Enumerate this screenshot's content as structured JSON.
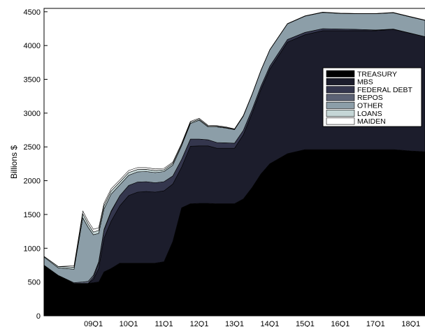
{
  "chart_data": {
    "type": "area",
    "stacked": true,
    "ylabel": "Billions $",
    "xlabel": "",
    "ylim": [
      0,
      4550
    ],
    "xlim": [
      2007.6,
      2018.4
    ],
    "yticks": [
      0,
      500,
      1000,
      1500,
      2000,
      2500,
      3000,
      3500,
      4000,
      4500
    ],
    "xticks": [
      {
        "label": "09Q1",
        "value": 2009.0
      },
      {
        "label": "10Q1",
        "value": 2010.0
      },
      {
        "label": "11Q1",
        "value": 2011.0
      },
      {
        "label": "12Q1",
        "value": 2012.0
      },
      {
        "label": "13Q1",
        "value": 2013.0
      },
      {
        "label": "14Q1",
        "value": 2014.0
      },
      {
        "label": "15Q1",
        "value": 2015.0
      },
      {
        "label": "16Q1",
        "value": 2016.0
      },
      {
        "label": "17Q1",
        "value": 2017.0
      },
      {
        "label": "18Q1",
        "value": 2018.0
      }
    ],
    "legend_position": "right",
    "x": [
      2007.6,
      2008.0,
      2008.45,
      2008.7,
      2008.85,
      2009.0,
      2009.15,
      2009.3,
      2009.5,
      2009.75,
      2010.0,
      2010.25,
      2010.5,
      2010.75,
      2011.0,
      2011.25,
      2011.5,
      2011.75,
      2012.0,
      2012.25,
      2012.5,
      2012.75,
      2013.0,
      2013.25,
      2013.5,
      2013.75,
      2014.0,
      2014.5,
      2015.0,
      2015.5,
      2016.0,
      2016.5,
      2017.0,
      2017.5,
      2018.0,
      2018.4
    ],
    "series": [
      {
        "name": "TREASURY",
        "color": "#000000",
        "values": [
          750,
          600,
          480,
          480,
          480,
          490,
          500,
          650,
          700,
          780,
          780,
          780,
          780,
          780,
          800,
          1100,
          1600,
          1660,
          1665,
          1665,
          1660,
          1660,
          1660,
          1730,
          1900,
          2100,
          2250,
          2400,
          2460,
          2460,
          2460,
          2460,
          2460,
          2460,
          2440,
          2430
        ]
      },
      {
        "name": "MBS",
        "color": "#1c1d2c",
        "values": [
          0,
          0,
          0,
          0,
          0,
          50,
          200,
          500,
          700,
          850,
          1000,
          1050,
          1060,
          1050,
          1050,
          850,
          600,
          850,
          850,
          850,
          820,
          820,
          820,
          950,
          1100,
          1250,
          1400,
          1650,
          1700,
          1760,
          1760,
          1760,
          1760,
          1780,
          1740,
          1700
        ]
      },
      {
        "name": "FEDERAL DEBT",
        "color": "#34364d",
        "values": [
          0,
          0,
          0,
          0,
          0,
          30,
          80,
          120,
          140,
          150,
          150,
          150,
          145,
          140,
          135,
          120,
          115,
          105,
          100,
          90,
          85,
          80,
          75,
          65,
          55,
          50,
          45,
          40,
          35,
          30,
          25,
          20,
          10,
          5,
          2,
          2
        ]
      },
      {
        "name": "REPOS",
        "color": "#5c6275",
        "values": [
          0,
          0,
          10,
          20,
          30,
          30,
          20,
          10,
          10,
          0,
          0,
          0,
          0,
          0,
          0,
          0,
          0,
          0,
          0,
          0,
          0,
          0,
          0,
          0,
          0,
          0,
          0,
          0,
          0,
          0,
          0,
          0,
          0,
          0,
          0,
          0
        ]
      },
      {
        "name": "OTHER",
        "color": "#8c9ea8",
        "values": [
          120,
          110,
          200,
          950,
          800,
          600,
          420,
          300,
          250,
          160,
          150,
          150,
          150,
          150,
          150,
          160,
          200,
          230,
          280,
          190,
          230,
          220,
          200,
          210,
          220,
          230,
          240,
          230,
          240,
          240,
          230,
          230,
          240,
          240,
          240,
          240
        ]
      },
      {
        "name": "LOANS",
        "color": "#c5d6d6",
        "values": [
          10,
          20,
          30,
          60,
          50,
          40,
          45,
          50,
          45,
          40,
          40,
          35,
          32,
          30,
          25,
          25,
          20,
          18,
          15,
          12,
          10,
          8,
          6,
          5,
          4,
          3,
          3,
          3,
          3,
          3,
          3,
          3,
          3,
          3,
          3,
          3
        ]
      },
      {
        "name": "MAIDEN",
        "color": "#ffffff",
        "values": [
          0,
          0,
          20,
          40,
          40,
          40,
          38,
          36,
          34,
          32,
          30,
          28,
          26,
          24,
          22,
          20,
          18,
          16,
          14,
          12,
          10,
          8,
          6,
          5,
          4,
          3,
          2,
          2,
          2,
          2,
          2,
          2,
          2,
          2,
          2,
          2
        ]
      }
    ]
  }
}
